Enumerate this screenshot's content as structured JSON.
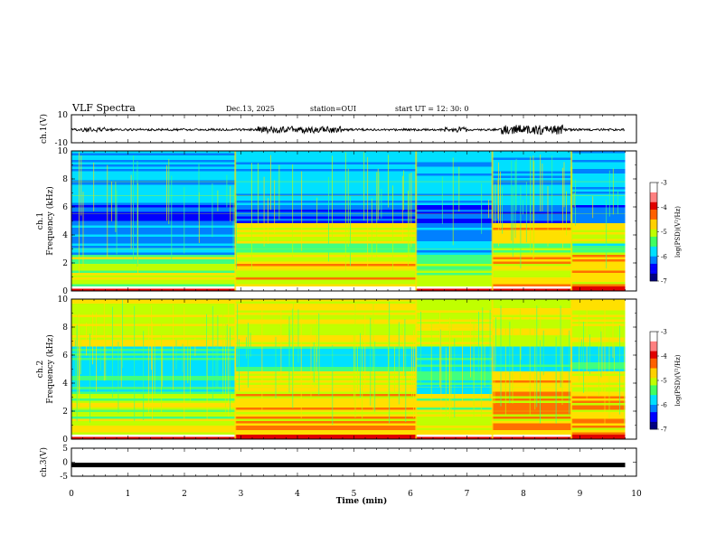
{
  "header": {
    "title": "VLF Spectra",
    "date": "Dec.13, 2025",
    "station": "station=OUI",
    "start": "start  UT =   12: 30: 0"
  },
  "colors": {
    "palette": [
      "#00007a",
      "#0000ff",
      "#0080ff",
      "#00e0ff",
      "#40ff80",
      "#c0ff00",
      "#ffe000",
      "#ff7000",
      "#e00000",
      "#ffffff"
    ]
  },
  "chart_data": [
    {
      "type": "line",
      "id": "ch1_waveform",
      "ylabel": "ch.1(V)",
      "ylim": [
        -10,
        10
      ],
      "yticks": [
        "10",
        "-10"
      ],
      "xlim": [
        0,
        10
      ]
    },
    {
      "type": "heatmap",
      "id": "ch1_spectrogram",
      "ylabel": "ch.1",
      "ylabel2": "Frequency (kHz)",
      "ylim": [
        0,
        10
      ],
      "yticks": [
        "10",
        "8",
        "6",
        "4",
        "2",
        "0"
      ],
      "xlim": [
        0,
        10
      ],
      "colorbar_label": "log(PSD)(V²/Hz)",
      "colorbar_ticks": [
        "-3",
        "-4",
        "-5",
        "-6",
        "-7"
      ],
      "clim": [
        -7,
        -3
      ],
      "segments_min": [
        0,
        2.9,
        6.1,
        7.45,
        8.85,
        9.8
      ]
    },
    {
      "type": "heatmap",
      "id": "ch2_spectrogram",
      "ylabel": "ch.2",
      "ylabel2": "Frequency (kHz)",
      "ylim": [
        0,
        10
      ],
      "yticks": [
        "10",
        "8",
        "6",
        "4",
        "2",
        "0"
      ],
      "xlim": [
        0,
        10
      ],
      "colorbar_label": "log(PSD)(V²/Hz)",
      "colorbar_ticks": [
        "-3",
        "-4",
        "-5",
        "-6",
        "-7"
      ],
      "clim": [
        -7,
        -3
      ],
      "segments_min": [
        0,
        2.9,
        6.1,
        7.45,
        8.85,
        9.8
      ]
    },
    {
      "type": "line",
      "id": "ch3_waveform",
      "ylabel": "ch.3(V)",
      "ylim": [
        -5,
        5
      ],
      "yticks": [
        "5",
        "0",
        "-5"
      ],
      "xlim": [
        0,
        10
      ],
      "xticks": [
        "0",
        "1",
        "2",
        "3",
        "4",
        "5",
        "6",
        "7",
        "8",
        "9",
        "10"
      ],
      "xlabel": "Time (min)",
      "constant_value": -1.0
    }
  ]
}
